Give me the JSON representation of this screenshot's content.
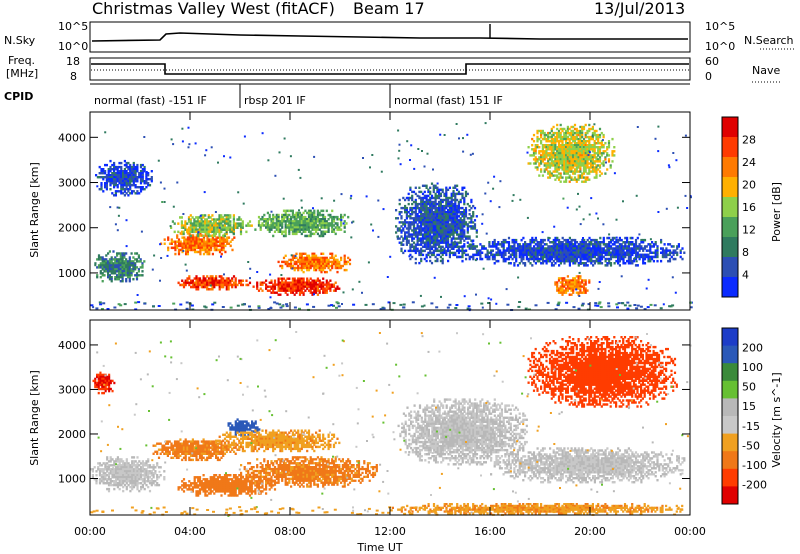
{
  "header": {
    "station": "Christmas Valley West (fitACF)",
    "beam": "Beam 17",
    "date": "13/Jul/2013"
  },
  "top_panels": {
    "nsky_label": "N.Sky",
    "nsky_ticks": [
      "10^5",
      "10^0"
    ],
    "nsearch_label": "N.Search",
    "nsearch_ticks": [
      "10^5",
      "10^0"
    ],
    "freq_label": "Freq.",
    "freq_unit": "[MHz]",
    "freq_ticks": [
      "18",
      "8"
    ],
    "nave_label": "Nave",
    "nave_ticks": [
      "60",
      "0"
    ],
    "cpid_label": "CPID",
    "cpid_segments": [
      {
        "label": "normal (fast) -151 IF",
        "start_hr": 0,
        "end_hr": 6
      },
      {
        "label": "rbsp 201 IF",
        "start_hr": 6,
        "end_hr": 12
      },
      {
        "label": "normal (fast) 151 IF",
        "start_hr": 12,
        "end_hr": 24
      }
    ]
  },
  "colors": {
    "power": [
      "#0b2bff",
      "#2c4fb4",
      "#2f7a5f",
      "#4aa05a",
      "#8ed04a",
      "#ffb000",
      "#ff7a00",
      "#ff3a00",
      "#e00000"
    ],
    "velocity": [
      "#1c3cc8",
      "#2a58b8",
      "#3a8a3a",
      "#66c032",
      "#b8b8b8",
      "#c8c8c8",
      "#f0a020",
      "#f07818",
      "#ff3c00",
      "#e00000"
    ]
  },
  "chart_data": [
    {
      "type": "heatmap",
      "title": "",
      "xlabel": "Time UT",
      "ylabel": "Slant Range [km]",
      "x_ticks": [
        "00:00",
        "04:00",
        "08:00",
        "12:00",
        "16:00",
        "20:00",
        "00:00"
      ],
      "x_range_hr": [
        0,
        24
      ],
      "y_ticks": [
        "1000",
        "2000",
        "3000",
        "4000"
      ],
      "y_range_km": [
        180,
        4560
      ],
      "colorbar_label": "Power [dB]",
      "colorbar_ticks": [
        "4",
        "8",
        "12",
        "16",
        "20",
        "24",
        "28"
      ],
      "blobs": [
        {
          "t0": 0.1,
          "t1": 2.2,
          "r0": 800,
          "r1": 1500,
          "v": 10
        },
        {
          "t0": 0.2,
          "t1": 2.5,
          "r0": 2700,
          "r1": 3500,
          "v": 6
        },
        {
          "t0": 2.8,
          "t1": 5.8,
          "r0": 1400,
          "r1": 1900,
          "v": 24
        },
        {
          "t0": 3.2,
          "t1": 6.5,
          "r0": 1800,
          "r1": 2300,
          "v": 16
        },
        {
          "t0": 3.5,
          "t1": 6.5,
          "r0": 620,
          "r1": 950,
          "v": 27
        },
        {
          "t0": 6.5,
          "t1": 10.0,
          "r0": 500,
          "r1": 900,
          "v": 28
        },
        {
          "t0": 6.5,
          "t1": 10.5,
          "r0": 1800,
          "r1": 2400,
          "v": 14
        },
        {
          "t0": 7.5,
          "t1": 10.5,
          "r0": 1000,
          "r1": 1450,
          "v": 24
        },
        {
          "t0": 12.2,
          "t1": 15.5,
          "r0": 1200,
          "r1": 3000,
          "v": 7
        },
        {
          "t0": 14.5,
          "t1": 23.8,
          "r0": 1150,
          "r1": 1800,
          "v": 6
        },
        {
          "t0": 17.5,
          "t1": 21.0,
          "r0": 3000,
          "r1": 4300,
          "v": 18
        },
        {
          "t0": 18.5,
          "t1": 20.0,
          "r0": 500,
          "r1": 950,
          "v": 24
        }
      ]
    },
    {
      "type": "heatmap",
      "title": "",
      "xlabel": "Time UT",
      "ylabel": "Slant Range [km]",
      "x_ticks": [
        "00:00",
        "04:00",
        "08:00",
        "12:00",
        "16:00",
        "20:00",
        "00:00"
      ],
      "x_range_hr": [
        0,
        24
      ],
      "y_ticks": [
        "1000",
        "2000",
        "3000",
        "4000"
      ],
      "y_range_km": [
        180,
        4560
      ],
      "colorbar_label": "Velocity [m s^-1]",
      "colorbar_ticks": [
        "200",
        "100",
        "50",
        "15",
        "-15",
        "-50",
        "-100",
        "-200"
      ],
      "blobs": [
        {
          "t0": 0.0,
          "t1": 3.0,
          "r0": 700,
          "r1": 1500,
          "v": 0
        },
        {
          "t0": 0.1,
          "t1": 1.0,
          "r0": 2900,
          "r1": 3400,
          "v": -200
        },
        {
          "t0": 2.5,
          "t1": 6.0,
          "r0": 1400,
          "r1": 1900,
          "v": -60
        },
        {
          "t0": 3.5,
          "t1": 7.5,
          "r0": 600,
          "r1": 1100,
          "v": -70
        },
        {
          "t0": 6.0,
          "t1": 11.5,
          "r0": 800,
          "r1": 1500,
          "v": -60
        },
        {
          "t0": 5.5,
          "t1": 6.8,
          "r0": 1950,
          "r1": 2350,
          "v": 150
        },
        {
          "t0": 5.0,
          "t1": 10.0,
          "r0": 1600,
          "r1": 2100,
          "v": -40
        },
        {
          "t0": 12.0,
          "t1": 24.0,
          "r0": 200,
          "r1": 450,
          "v": -45
        },
        {
          "t0": 12.3,
          "t1": 17.5,
          "r0": 1300,
          "r1": 2800,
          "v": 0
        },
        {
          "t0": 16.0,
          "t1": 23.8,
          "r0": 900,
          "r1": 1700,
          "v": 0
        },
        {
          "t0": 17.5,
          "t1": 23.5,
          "r0": 2600,
          "r1": 4200,
          "v": -180
        }
      ]
    }
  ]
}
